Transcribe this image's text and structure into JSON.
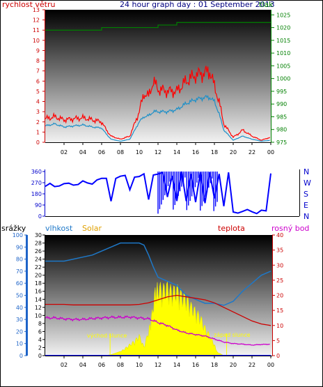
{
  "top_left_label": "rychlost větru",
  "title": "24 hour graph day : 01 September 2013",
  "top_right_label": "tlak",
  "x_tick_labels": [
    "02",
    "04",
    "06",
    "08",
    "10",
    "12",
    "14",
    "16",
    "18",
    "20",
    "22",
    "00"
  ],
  "wind_y_ticks": [
    0,
    1,
    2,
    3,
    4,
    5,
    6,
    7,
    8,
    9,
    10,
    11,
    12,
    13
  ],
  "pressure_y_ticks": [
    975,
    980,
    985,
    990,
    995,
    1000,
    1005,
    1010,
    1015,
    1020,
    1025
  ],
  "dir_y_ticks": [
    0,
    90,
    180,
    270,
    360
  ],
  "dir_right_labels": [
    "N",
    "W",
    "S",
    "E",
    "N"
  ],
  "rain_y_ticks": [
    0,
    10,
    20,
    30,
    40,
    50,
    60,
    70,
    80,
    90,
    100
  ],
  "hum_y_ticks": [
    0,
    2,
    4,
    6,
    8,
    10,
    12,
    14,
    16,
    18,
    20,
    22,
    24,
    26,
    28,
    30
  ],
  "temp_y_ticks": [
    0,
    5,
    10,
    15,
    20,
    25,
    30,
    35,
    40
  ],
  "bottom_header": {
    "rain": "srážky",
    "humidity": "vlhkost",
    "solar": "Solar",
    "temperature": "teplota",
    "dew": "rosný bod"
  },
  "annotations": {
    "sunrise": "východ slunce",
    "sunset": "západ slunce"
  },
  "colors": {
    "wind_gust": "#ff0000",
    "wind_avg": "#1e90c8",
    "pressure": "#008000",
    "direction": "#0000ff",
    "humidity": "#1e78c8",
    "solar": "#ffff00",
    "temperature": "#cc0000",
    "dew": "#cc00cc",
    "rain": "#0000ff",
    "title": "#000080"
  },
  "chart_data": [
    {
      "type": "line",
      "x_range": [
        0,
        24
      ],
      "ylim_left": [
        0,
        13
      ],
      "ylim_right": [
        975,
        1027
      ],
      "series": [
        {
          "key": "gust",
          "x": [
            0,
            1,
            2,
            3,
            4,
            5,
            6,
            6.5,
            7,
            8,
            9,
            10,
            10.5,
            11,
            11.5,
            12,
            13,
            14,
            15,
            16,
            17,
            17.5,
            18,
            18.5,
            19,
            20,
            20.5,
            21,
            22,
            23,
            24
          ],
          "y": [
            2.3,
            2.5,
            2.2,
            2.3,
            2.4,
            2.2,
            2.0,
            1.2,
            0.6,
            0.3,
            0.6,
            3.0,
            4.8,
            4.5,
            6.0,
            5.2,
            5.0,
            5.0,
            6.0,
            6.6,
            6.8,
            7.0,
            5.5,
            4.0,
            1.8,
            0.5,
            0.8,
            1.2,
            0.6,
            0.2,
            0.5
          ]
        },
        {
          "key": "avg",
          "x": [
            0,
            1,
            2,
            3,
            4,
            5,
            6,
            6.5,
            7,
            8,
            9,
            10,
            10.5,
            11,
            11.5,
            12,
            13,
            14,
            15,
            16,
            17,
            17.5,
            18,
            18.5,
            19,
            20,
            20.5,
            21,
            22,
            23,
            24
          ],
          "y": [
            1.6,
            1.8,
            1.5,
            1.6,
            1.7,
            1.5,
            1.4,
            0.8,
            0.3,
            0.1,
            0.3,
            2.0,
            2.5,
            2.6,
            3.0,
            3.0,
            3.0,
            3.2,
            3.8,
            4.2,
            4.4,
            4.4,
            4.0,
            2.8,
            1.2,
            0.2,
            0.4,
            0.6,
            0.3,
            0.1,
            0.2
          ]
        },
        {
          "key": "pressure",
          "x": [
            0,
            2,
            4,
            6,
            8,
            10,
            12,
            14,
            16,
            18,
            20,
            22,
            24
          ],
          "y": [
            1019,
            1019,
            1019,
            1020,
            1020,
            1020,
            1021,
            1022,
            1022,
            1022,
            1022,
            1022,
            1022
          ]
        }
      ]
    },
    {
      "type": "line",
      "ylim": [
        0,
        360
      ],
      "series": [
        {
          "key": "direction",
          "x": [
            0,
            0.5,
            1,
            1.5,
            2,
            2.5,
            3,
            3.5,
            4,
            4.5,
            5,
            5.5,
            6,
            6.5,
            7,
            7.5,
            8,
            8.5,
            9,
            9.5,
            10,
            10.5,
            11,
            11.5,
            12,
            12.5,
            13,
            13.5,
            14,
            14.5,
            15,
            15.5,
            16,
            16.5,
            17,
            17.5,
            18,
            18.5,
            19,
            19.5,
            20,
            20.5,
            21,
            21.5,
            22,
            22.5,
            23,
            23.5,
            24
          ],
          "y": [
            240,
            250,
            245,
            255,
            250,
            260,
            265,
            255,
            270,
            275,
            270,
            280,
            300,
            320,
            120,
            290,
            330,
            340,
            200,
            310,
            335,
            340,
            120,
            340,
            350,
            340,
            150,
            340,
            120,
            350,
            130,
            350,
            100,
            350,
            120,
            350,
            130,
            350,
            90,
            340,
            30,
            40,
            35,
            40,
            45,
            30,
            35,
            40,
            360
          ]
        }
      ]
    },
    {
      "type": "line",
      "ylim_rain": [
        0,
        100
      ],
      "ylim_humidity": [
        0,
        30
      ],
      "ylim_temperature": [
        0,
        40
      ],
      "series": [
        {
          "key": "humidity",
          "x": [
            0,
            1,
            2,
            3,
            4,
            5,
            6,
            7,
            8,
            9,
            10,
            10.5,
            11,
            11.5,
            12,
            13,
            14,
            15,
            16,
            17,
            18,
            19,
            20,
            21,
            22,
            23,
            24
          ],
          "y": [
            23.5,
            23.5,
            23.5,
            24,
            24.5,
            25,
            26,
            27,
            28,
            28,
            28,
            27.5,
            25,
            22,
            19.5,
            18.5,
            17.5,
            15,
            14,
            13,
            13,
            12.5,
            13.5,
            16,
            18,
            20,
            21
          ]
        },
        {
          "key": "temperature",
          "x": [
            0,
            1,
            2,
            3,
            4,
            5,
            6,
            7,
            8,
            9,
            10,
            11,
            12,
            13,
            14,
            15,
            16,
            17,
            18,
            19,
            20,
            21,
            22,
            23,
            24
          ],
          "y": [
            17,
            17,
            17,
            16.8,
            16.8,
            16.8,
            16.8,
            16.8,
            16.8,
            16.8,
            17,
            17.5,
            18.5,
            19.5,
            20,
            19.5,
            19,
            18.5,
            17.5,
            16,
            14.5,
            13,
            11.5,
            10.5,
            10
          ]
        },
        {
          "key": "dew",
          "x": [
            0,
            1,
            2,
            3,
            4,
            5,
            6,
            7,
            8,
            9,
            10,
            11,
            12,
            13,
            14,
            15,
            16,
            17,
            18,
            19,
            20,
            21,
            22,
            23,
            24
          ],
          "y": [
            12.5,
            12.5,
            12.2,
            12,
            12,
            12.3,
            12.5,
            12.7,
            12.7,
            12.8,
            12.5,
            12.2,
            11,
            10,
            8.5,
            7.5,
            7,
            6.5,
            5.5,
            4.5,
            4,
            3.8,
            3.5,
            3.7,
            3.8
          ]
        },
        {
          "key": "solar",
          "x": [
            0,
            6.2,
            7,
            8,
            8.5,
            9,
            9.5,
            10,
            10.5,
            11,
            11.3,
            11.7,
            12,
            12.5,
            13,
            13.5,
            14,
            14.5,
            15,
            15.5,
            16,
            16.5,
            17,
            17.5,
            18,
            18.3,
            19,
            24
          ],
          "y": [
            0,
            0,
            0.8,
            3.5,
            6.5,
            10,
            13,
            18,
            8,
            22,
            34,
            58,
            62,
            60,
            62,
            58,
            60,
            55,
            52,
            45,
            40,
            35,
            25,
            18,
            10,
            3,
            0,
            0
          ]
        },
        {
          "key": "rain",
          "x": [
            0,
            24
          ],
          "y": [
            0,
            0
          ]
        }
      ]
    }
  ]
}
